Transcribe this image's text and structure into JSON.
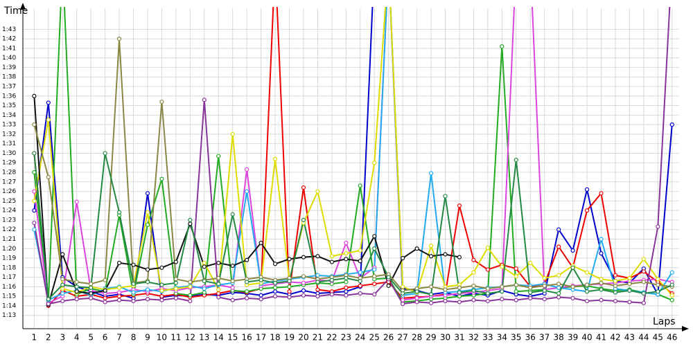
{
  "chart_data": {
    "type": "line",
    "y_label": "Time",
    "x_label": "Laps",
    "x": [
      1,
      2,
      3,
      4,
      5,
      6,
      7,
      8,
      9,
      10,
      11,
      12,
      13,
      14,
      15,
      16,
      17,
      18,
      19,
      20,
      21,
      22,
      23,
      24,
      25,
      26,
      27,
      28,
      29,
      30,
      31,
      32,
      33,
      34,
      35,
      36,
      37,
      38,
      39,
      40,
      41,
      42,
      43,
      44,
      45,
      46
    ],
    "xlim": [
      0.2,
      46.5
    ],
    "ylim": [
      71.6,
      105.2
    ],
    "yticks": [
      {
        "value": 73,
        "label": "1:13"
      },
      {
        "value": 74,
        "label": "1:14"
      },
      {
        "value": 75,
        "label": "1:15"
      },
      {
        "value": 76,
        "label": "1:16"
      },
      {
        "value": 77,
        "label": "1:17"
      },
      {
        "value": 78,
        "label": "1:18"
      },
      {
        "value": 79,
        "label": "1:19"
      },
      {
        "value": 80,
        "label": "1:20"
      },
      {
        "value": 81,
        "label": "1:21"
      },
      {
        "value": 82,
        "label": "1:22"
      },
      {
        "value": 83,
        "label": "1:23"
      },
      {
        "value": 84,
        "label": "1:24"
      },
      {
        "value": 85,
        "label": "1:25"
      },
      {
        "value": 86,
        "label": "1:26"
      },
      {
        "value": 87,
        "label": "1:27"
      },
      {
        "value": 88,
        "label": "1:28"
      },
      {
        "value": 89,
        "label": "1:29"
      },
      {
        "value": 90,
        "label": "1:30"
      },
      {
        "value": 91,
        "label": "1:31"
      },
      {
        "value": 92,
        "label": "1:32"
      },
      {
        "value": 93,
        "label": "1:33"
      },
      {
        "value": 94,
        "label": "1:34"
      },
      {
        "value": 95,
        "label": "1:35"
      },
      {
        "value": 96,
        "label": "1:36"
      },
      {
        "value": 97,
        "label": "1:37"
      },
      {
        "value": 98,
        "label": "1:38"
      },
      {
        "value": 99,
        "label": "1:39"
      },
      {
        "value": 100,
        "label": "1:40"
      },
      {
        "value": 101,
        "label": "1:41"
      },
      {
        "value": 102,
        "label": "1:42"
      },
      {
        "value": 103,
        "label": "1:43"
      }
    ],
    "grid": true,
    "markers": true,
    "series": [
      {
        "color": "#0000cc",
        "values": [
          84,
          95.3,
          77,
          76,
          75.5,
          75,
          75.2,
          74.8,
          85.8,
          74.9,
          75.1,
          75,
          75.2,
          75.1,
          75.4,
          75.3,
          75.1,
          75.5,
          75.2,
          75.6,
          75.3,
          75.4,
          75.5,
          76,
          110,
          110,
          75.8,
          75.6,
          75.2,
          75.4,
          75,
          75.3,
          75.1,
          75.6,
          75.2,
          75,
          75.3,
          82,
          79.8,
          86.2,
          79.5,
          76.6,
          76.4,
          77.9,
          75.2,
          93
        ]
      },
      {
        "color": "#ee0000",
        "values": [
          90,
          74,
          75.6,
          75,
          75.2,
          74.8,
          75,
          75.1,
          75.3,
          75,
          75.2,
          74.9,
          75.1,
          75.3,
          75.6,
          75.4,
          75.8,
          110,
          75.5,
          86.4,
          75.7,
          75.5,
          75.9,
          76.1,
          76.3,
          76.5,
          74.8,
          74.9,
          75,
          75.2,
          84.5,
          78.8,
          77.8,
          78.3,
          77.9,
          76,
          76.3,
          80.2,
          78,
          84,
          85.8,
          77.2,
          76.9,
          77.6,
          76.5,
          75.3
        ]
      },
      {
        "color": "#22aa22",
        "values": [
          88,
          74.5,
          110,
          75.2,
          75.8,
          75.5,
          83.5,
          75.2,
          82.5,
          87.3,
          75.3,
          75.1,
          75.4,
          89.7,
          75.6,
          75.5,
          75.8,
          75.9,
          76,
          76.2,
          76.4,
          76.3,
          76.5,
          86.6,
          76.8,
          76.9,
          74.4,
          74.5,
          74.7,
          74.8,
          75,
          75.1,
          75.3,
          101.2,
          75.5,
          75.6,
          75.7,
          75.9,
          76,
          76.1,
          75.8,
          75.6,
          75.7,
          75.4,
          75.2,
          74.6
        ]
      },
      {
        "color": "#dd44dd",
        "values": [
          86,
          74.3,
          75,
          84.9,
          75.6,
          75.3,
          75.4,
          75.7,
          75.5,
          75.8,
          75.6,
          75.9,
          76,
          76.2,
          75.9,
          88.3,
          76.1,
          76.3,
          76.5,
          76.4,
          76.7,
          76.6,
          80.6,
          76.9,
          78,
          110,
          74.6,
          74.8,
          75,
          75.1,
          75.3,
          75.4,
          75.6,
          75.8,
          110,
          110,
          75.7,
          75.9,
          76.1,
          76.2,
          76.3,
          76.4,
          76.6,
          76.7,
          76.8,
          76.5
        ]
      },
      {
        "color": "#22aaee",
        "values": [
          82,
          74.6,
          75.3,
          75.6,
          75.1,
          75.8,
          76,
          75.4,
          75.7,
          75.5,
          75.9,
          76.1,
          75.8,
          76.2,
          76.4,
          86,
          76.3,
          76.6,
          76.8,
          77,
          77.2,
          77.1,
          77.3,
          77.5,
          77.8,
          110,
          75.1,
          75.3,
          87.9,
          75.4,
          75.5,
          75.7,
          75.9,
          76,
          76.2,
          76.1,
          76.3,
          75.9,
          75.7,
          75.5,
          81,
          75.8,
          75.6,
          75.4,
          75.2,
          77.5
        ]
      },
      {
        "color": "#dddd00",
        "values": [
          85,
          93.5,
          75.8,
          75.4,
          76,
          75.7,
          75.9,
          76.1,
          83.8,
          75.6,
          75.8,
          76,
          78.5,
          75.7,
          92,
          76.2,
          76.4,
          89.4,
          76.7,
          82.7,
          86,
          79.2,
          79.5,
          79.8,
          89,
          110,
          76,
          75.4,
          80.3,
          76,
          76.2,
          77.5,
          80.1,
          78.1,
          77.1,
          78.5,
          76.9,
          77.2,
          78.2,
          77.5,
          76.8,
          76.6,
          76.9,
          78.9,
          76.8,
          75.1
        ]
      },
      {
        "color": "#111111",
        "values": [
          96,
          74.1,
          79.4,
          75.5,
          75.3,
          75.6,
          78.5,
          78.3,
          77.8,
          78,
          78.6,
          82.6,
          78.1,
          78.5,
          78.2,
          78.8,
          80.6,
          78.4,
          78.9,
          79.1,
          79.2,
          78.6,
          78.9,
          78.7,
          81.3,
          76.1,
          79,
          80,
          79.2,
          79.4,
          79.1,
          null,
          null,
          null,
          null,
          null,
          null,
          null,
          null,
          null,
          null,
          null,
          null,
          null,
          null,
          null
        ]
      },
      {
        "color": "#883399",
        "values": [
          82.7,
          74.2,
          74.5,
          74.7,
          74.8,
          74.4,
          74.6,
          74.5,
          74.7,
          74.6,
          74.8,
          74.5,
          95.6,
          74.9,
          74.6,
          74.8,
          74.7,
          75,
          74.9,
          75.1,
          75,
          75.2,
          75.1,
          75.3,
          75.2,
          76.8,
          74.2,
          74.4,
          74.3,
          74.5,
          74.4,
          74.6,
          74.5,
          74.7,
          74.6,
          74.8,
          74.7,
          74.9,
          74.8,
          74.5,
          74.6,
          74.5,
          74.4,
          74.3,
          82.3,
          110
        ]
      },
      {
        "color": "#888844",
        "values": [
          93,
          87.5,
          76.8,
          76.5,
          76.3,
          76.7,
          102,
          76.4,
          76.6,
          95.4,
          76.8,
          76.5,
          76.7,
          76.9,
          76.6,
          76.8,
          77,
          76.7,
          76.9,
          77.1,
          76.8,
          77,
          77.2,
          76.9,
          77.1,
          77.3,
          75.6,
          75.8,
          76,
          75.7,
          75.9,
          76.1,
          75.8,
          76,
          76.2,
          75.9,
          76.1,
          76.3,
          76,
          76.2,
          76.4,
          76.1,
          76.3,
          76.5,
          76.2,
          76
        ]
      },
      {
        "color": "#228844",
        "values": [
          90,
          74.7,
          76.2,
          76,
          75.9,
          90,
          83.8,
          76.3,
          76.5,
          76.2,
          76.4,
          83,
          76.6,
          76.3,
          83.6,
          76.5,
          76.7,
          76.4,
          76.6,
          83,
          76.5,
          76.7,
          76.9,
          76.6,
          80,
          77,
          75.3,
          75.5,
          75.2,
          85.5,
          75.4,
          75.6,
          75.3,
          75.5,
          89.3,
          75.4,
          75.6,
          75.3,
          78,
          75.5,
          75.7,
          75.4,
          75.6,
          75.3,
          75.5,
          76.2
        ]
      }
    ]
  }
}
